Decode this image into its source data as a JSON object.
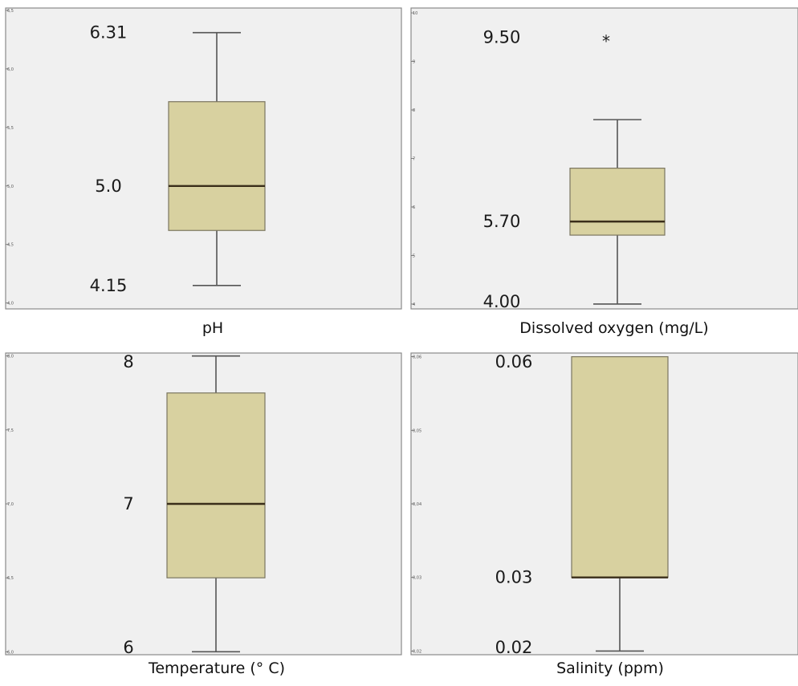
{
  "chart_data": [
    {
      "type": "box",
      "xlabel": "pH",
      "ylim": [
        3.95,
        6.52
      ],
      "ticks": [
        "4,0",
        "4,5",
        "5,0",
        "5,5",
        "6,0",
        "6,5"
      ],
      "tick_values": [
        4.0,
        4.5,
        5.0,
        5.5,
        6.0,
        6.5
      ],
      "whisker_low": 4.15,
      "q1": 4.62,
      "median": 5.0,
      "q3": 5.72,
      "whisker_high": 6.31,
      "outliers": [],
      "annotations": [
        {
          "text": "6.31",
          "value": 6.31
        },
        {
          "text": "5.0",
          "value": 5.0
        },
        {
          "text": "4.15",
          "value": 4.15
        }
      ]
    },
    {
      "type": "box",
      "xlabel": "Dissolved oxygen (mg/L)",
      "ylim": [
        3.9,
        10.1
      ],
      "ticks": [
        "4",
        "5",
        "6",
        "7",
        "8",
        "9",
        "10"
      ],
      "tick_values": [
        4,
        5,
        6,
        7,
        8,
        9,
        10
      ],
      "whisker_low": 4.0,
      "q1": 5.42,
      "median": 5.7,
      "q3": 6.8,
      "whisker_high": 7.8,
      "outliers": [
        9.5
      ],
      "outlier_symbol": "*",
      "annotations": [
        {
          "text": "9.50",
          "value": 9.5
        },
        {
          "text": "5.70",
          "value": 5.7
        },
        {
          "text": "4.00",
          "value": 4.0
        }
      ]
    },
    {
      "type": "box",
      "xlabel": "Temperature (° C)",
      "ylim": [
        5.98,
        8.02
      ],
      "ticks": [
        "6,0",
        "6,5",
        "7,0",
        "7,5",
        "8,0"
      ],
      "tick_values": [
        6.0,
        6.5,
        7.0,
        7.5,
        8.0
      ],
      "whisker_low": 6.0,
      "q1": 6.5,
      "median": 7.0,
      "q3": 7.75,
      "whisker_high": 8.0,
      "outliers": [],
      "annotations": [
        {
          "text": "8",
          "value": 8.0
        },
        {
          "text": "7",
          "value": 7.0
        },
        {
          "text": "6",
          "value": 6.0
        }
      ]
    },
    {
      "type": "box",
      "xlabel": "Salinity (ppm)",
      "ylim": [
        0.0195,
        0.0605
      ],
      "ticks": [
        "0,02",
        "0,03",
        "0,04",
        "0,05",
        "0,06"
      ],
      "tick_values": [
        0.02,
        0.03,
        0.04,
        0.05,
        0.06
      ],
      "whisker_low": 0.02,
      "q1": 0.03,
      "median": 0.03,
      "q3": 0.06,
      "whisker_high": 0.06,
      "outliers": [],
      "annotations": [
        {
          "text": "0.06",
          "value": 0.06
        },
        {
          "text": "0.03",
          "value": 0.03
        },
        {
          "text": "0.02",
          "value": 0.02
        }
      ]
    }
  ],
  "colors": {
    "box_fill": "#d8d1a0",
    "plot_background": "#f0f0f0",
    "frame": "#8a8a8a",
    "median_line": "#3a2e1a",
    "whisker": "#555555"
  }
}
